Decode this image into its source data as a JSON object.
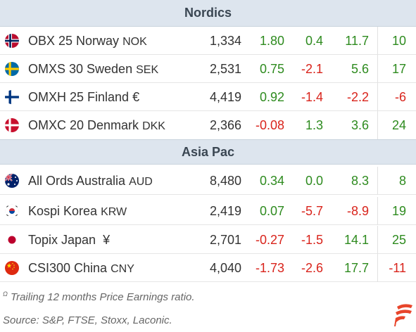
{
  "colors": {
    "positive": "#2e8b1f",
    "negative": "#d9241c",
    "header_bg": "#dde5ee",
    "logo": "#e8452b"
  },
  "sections": [
    {
      "title": "Nordics",
      "rows": [
        {
          "flag": "norway-flag-icon",
          "name": "OBX 25 Norway",
          "currency": "NOK",
          "level": "1,334",
          "v1": "1.80",
          "v2": "0.4",
          "v3": "11.7",
          "pe": "10"
        },
        {
          "flag": "sweden-flag-icon",
          "name": "OMXS 30 Sweden",
          "currency": "SEK",
          "level": "2,531",
          "v1": "0.75",
          "v2": "-2.1",
          "v3": "5.6",
          "pe": "17"
        },
        {
          "flag": "finland-flag-icon",
          "name": "OMXH 25 Finland",
          "currency": "€",
          "level": "4,419",
          "v1": "0.92",
          "v2": "-1.4",
          "v3": "-2.2",
          "pe": "-6"
        },
        {
          "flag": "denmark-flag-icon",
          "name": "OMXC 20 Denmark",
          "currency": "DKK",
          "level": "2,366",
          "v1": "-0.08",
          "v2": "1.3",
          "v3": "3.6",
          "pe": "24"
        }
      ]
    },
    {
      "title": "Asia Pac",
      "rows": [
        {
          "flag": "australia-flag-icon",
          "name": "All Ords Australia",
          "currency": "AUD",
          "level": "8,480",
          "v1": "0.34",
          "v2": "0.0",
          "v3": "8.3",
          "pe": "8"
        },
        {
          "flag": "south-korea-flag-icon",
          "name": "Kospi Korea",
          "currency": "KRW",
          "level": "2,419",
          "v1": "0.07",
          "v2": "-5.7",
          "v3": "-8.9",
          "pe": "19"
        },
        {
          "flag": "japan-flag-icon",
          "name": "Topix Japan",
          "currency": "¥",
          "level": "2,701",
          "v1": "-0.27",
          "v2": "-1.5",
          "v3": "14.1",
          "pe": "25"
        },
        {
          "flag": "china-flag-icon",
          "name": "CSI300 China",
          "currency": "CNY",
          "level": "4,040",
          "v1": "-1.73",
          "v2": "-2.6",
          "v3": "17.7",
          "pe": "-11"
        }
      ]
    }
  ],
  "footnote": {
    "marker": "Ω",
    "text": "Trailing 12 months Price Earnings ratio."
  },
  "source": "Source: S&P, FTSE, Stoxx, Laconic.",
  "logo": "laconic-logo-icon"
}
